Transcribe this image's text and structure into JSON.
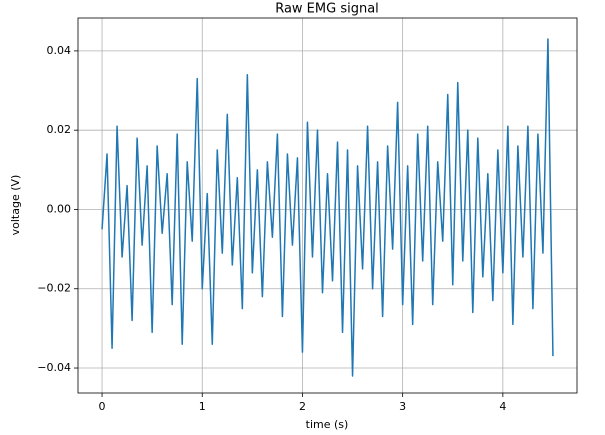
{
  "chart_data": {
    "type": "line",
    "title": "Raw EMG signal",
    "x_label": "time (s)",
    "y_label": "voltage (V)",
    "grid": true,
    "x": [
      0,
      0.05,
      0.1,
      0.15,
      0.2,
      0.25,
      0.3,
      0.35,
      0.4,
      0.45,
      0.5,
      0.55,
      0.6,
      0.65,
      0.7,
      0.75,
      0.8,
      0.85,
      0.9,
      0.95,
      1.0,
      1.05,
      1.1,
      1.15,
      1.2,
      1.25,
      1.3,
      1.35,
      1.4,
      1.45,
      1.5,
      1.55,
      1.6,
      1.65,
      1.7,
      1.75,
      1.8,
      1.85,
      1.9,
      1.95,
      2.0,
      2.05,
      2.1,
      2.15,
      2.2,
      2.25,
      2.3,
      2.35,
      2.4,
      2.45,
      2.5,
      2.55,
      2.6,
      2.65,
      2.7,
      2.75,
      2.8,
      2.85,
      2.9,
      2.95,
      3.0,
      3.05,
      3.1,
      3.15,
      3.2,
      3.25,
      3.3,
      3.35,
      3.4,
      3.45,
      3.5,
      3.55,
      3.6,
      3.65,
      3.7,
      3.75,
      3.8,
      3.85,
      3.9,
      3.95,
      4.0,
      4.05,
      4.1,
      4.15,
      4.2,
      4.25,
      4.3,
      4.35,
      4.4,
      4.45,
      4.5
    ],
    "series": [
      {
        "name": "EMG",
        "color": "#1f77b4",
        "values": [
          -0.005,
          0.014,
          -0.035,
          0.021,
          -0.012,
          0.006,
          -0.028,
          0.018,
          -0.009,
          0.011,
          -0.031,
          0.016,
          -0.006,
          0.009,
          -0.024,
          0.019,
          -0.034,
          0.012,
          -0.008,
          0.033,
          -0.02,
          0.004,
          -0.034,
          0.015,
          -0.011,
          0.024,
          -0.014,
          0.008,
          -0.025,
          0.034,
          -0.016,
          0.01,
          -0.022,
          0.012,
          -0.007,
          0.019,
          -0.027,
          0.014,
          -0.009,
          0.013,
          -0.036,
          0.022,
          -0.012,
          0.02,
          -0.021,
          0.009,
          -0.018,
          0.017,
          -0.031,
          0.015,
          -0.042,
          0.011,
          -0.015,
          0.021,
          -0.02,
          0.012,
          -0.027,
          0.016,
          -0.01,
          0.027,
          -0.024,
          0.011,
          -0.029,
          0.019,
          -0.013,
          0.021,
          -0.024,
          0.012,
          -0.008,
          0.029,
          -0.019,
          0.032,
          -0.013,
          0.02,
          -0.026,
          0.018,
          -0.017,
          0.009,
          -0.023,
          0.015,
          -0.016,
          0.021,
          -0.029,
          0.016,
          -0.012,
          0.021,
          -0.025,
          0.019,
          -0.011,
          0.043,
          -0.037
        ]
      }
    ],
    "xlim": [
      -0.24,
      4.74
    ],
    "xticks": [
      0,
      1,
      2,
      3,
      4
    ],
    "ylim": [
      -0.0463,
      0.0483
    ],
    "yticks": [
      {
        "value": -0.04,
        "label": "−0.04"
      },
      {
        "value": -0.02,
        "label": "−0.02"
      },
      {
        "value": 0,
        "label": "0.00"
      },
      {
        "value": 0.02,
        "label": "0.02"
      },
      {
        "value": 0.04,
        "label": "0.04"
      }
    ]
  }
}
